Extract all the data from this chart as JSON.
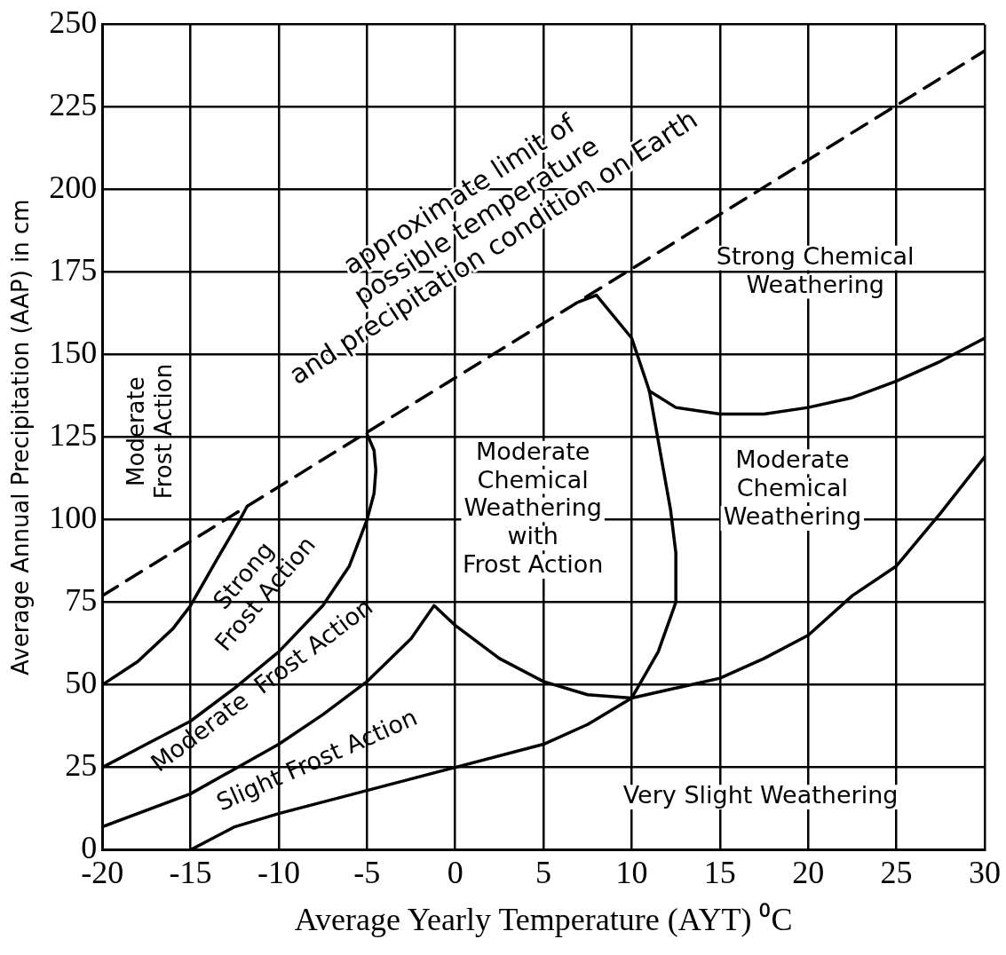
{
  "chart_data": {
    "type": "line",
    "xlabel": "Average Yearly Temperature (AYT) ⁰C",
    "ylabel": "Average Annual Precipitation (AAP) in cm",
    "xlim": [
      -20,
      30
    ],
    "ylim": [
      0,
      250
    ],
    "xticks": [
      -20,
      -15,
      -10,
      -5,
      0,
      5,
      10,
      15,
      20,
      25,
      30
    ],
    "yticks": [
      0,
      25,
      50,
      75,
      100,
      125,
      150,
      175,
      200,
      225,
      250
    ],
    "grid": true,
    "legend": false,
    "marker": "none",
    "line_style": "solid",
    "series": [
      {
        "color": "#000000",
        "x": [
          -20,
          -18,
          -16,
          -15,
          -13.5,
          -12.2,
          -11.8
        ],
        "values": [
          50,
          57,
          67,
          74,
          88,
          100,
          104
        ]
      },
      {
        "color": "#000000",
        "x": [
          -20,
          -17.5,
          -15,
          -12.5,
          -10,
          -7.5,
          -6,
          -5,
          -4.6,
          -4.5,
          -4.6,
          -5
        ],
        "values": [
          25,
          32,
          39,
          49,
          60,
          74,
          86,
          100,
          108,
          115,
          121,
          126
        ]
      },
      {
        "color": "#000000",
        "x": [
          -20,
          -15,
          -10,
          -7.5,
          -5,
          -2.5,
          -1.2,
          0,
          2.5,
          5,
          7.5,
          10
        ],
        "values": [
          7,
          17,
          32,
          41,
          51,
          64,
          74,
          68,
          58,
          51,
          47,
          46
        ]
      },
      {
        "color": "#000000",
        "x": [
          -15,
          -12.5,
          -10,
          -5,
          0,
          5,
          7.5,
          10,
          12.5,
          15,
          17.5,
          20,
          22.5,
          25,
          27.5,
          30
        ],
        "values": [
          0,
          7,
          11,
          18,
          25,
          32,
          38,
          46,
          49,
          52,
          58,
          65,
          77,
          86,
          102,
          119
        ]
      },
      {
        "color": "#000000",
        "x": [
          10,
          11.5,
          12.5,
          12.5,
          12.2,
          11,
          10,
          8,
          7
        ],
        "values": [
          46,
          60,
          75,
          90,
          103,
          139,
          155,
          168,
          166
        ]
      },
      {
        "color": "#000000",
        "x": [
          11,
          12.5,
          15,
          17.5,
          20,
          22.5,
          25,
          27.5,
          30
        ],
        "values": [
          139,
          134,
          132,
          132,
          134,
          137,
          142,
          148,
          155
        ]
      },
      {
        "color": "#000000",
        "line_style": "dashed",
        "x": [
          -20,
          30
        ],
        "values": [
          77,
          242
        ]
      }
    ],
    "annotations": [
      "approximate limit of\npossible temperature\nand precipitation condition on Earth",
      "Strong Chemical\nWeathering",
      "Moderate\nChemical\nWeathering\nwith\nFrost Action",
      "Moderate\nChemical\nWeathering",
      "Very Slight Weathering",
      "Slight Frost Action",
      "Moderate  Frost Action",
      "Strong\nFrost Action",
      "Moderate\nFrost Action"
    ]
  }
}
